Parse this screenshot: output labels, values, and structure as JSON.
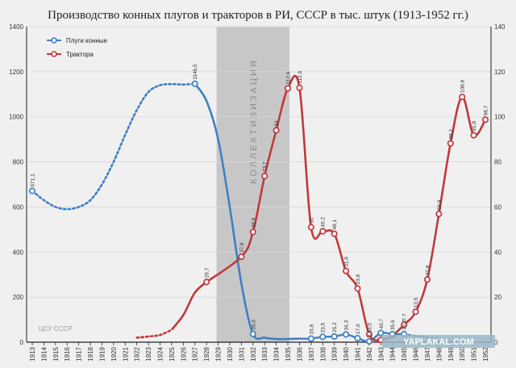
{
  "chart_data": {
    "type": "line",
    "title": "Производство конных плугов и тракторов в РИ, СССР в тыс. штук (1913-1952 гг.)",
    "y_left": {
      "ylim": [
        0,
        1400
      ],
      "ticks": [
        0,
        200,
        400,
        600,
        800,
        1000,
        1200,
        1400
      ]
    },
    "y_right": {
      "ylim": [
        0,
        140
      ],
      "ticks": [
        0,
        20,
        40,
        60,
        80,
        100,
        120,
        140
      ]
    },
    "x_ticks": [
      "1913",
      "1914",
      "1915",
      "1916",
      "1917",
      "1918",
      "1919",
      "1920",
      "1921",
      "1922",
      "1923",
      "1924",
      "1925",
      "1926",
      "1927",
      "1928",
      "1929",
      "1930",
      "1931",
      "1932",
      "1933",
      "1934",
      "1935",
      "1936",
      "1937",
      "1938",
      "1939",
      "1940",
      "1941",
      "1942",
      "1943",
      "1944",
      "1945",
      "1946",
      "1947",
      "1948",
      "1949",
      "1950",
      "1951",
      "1952"
    ],
    "band": {
      "from": 1929,
      "to": 1935,
      "label": "КОЛЛЕКТИВИЗАЦИЯ"
    },
    "legend": {
      "position": "top-left"
    },
    "source": "ЦСУ СССР",
    "watermark": "YAPLAKAL.COM",
    "colors": {
      "plows": "#3f7fc4",
      "tractors": "#c0393b",
      "band": "#c2c2c2",
      "axis": "#222222"
    },
    "series": [
      {
        "name": "Плуги конные",
        "axis": "left",
        "dotted_curve": [
          [
            1913,
            671.1
          ],
          [
            1914,
            630
          ],
          [
            1915,
            600
          ],
          [
            1916,
            590
          ],
          [
            1917,
            600
          ],
          [
            1918,
            630
          ],
          [
            1919,
            700
          ],
          [
            1920,
            800
          ],
          [
            1921,
            920
          ],
          [
            1922,
            1030
          ],
          [
            1923,
            1110
          ],
          [
            1924,
            1140
          ],
          [
            1925,
            1145
          ],
          [
            1926,
            1143
          ],
          [
            1927,
            1146.5
          ]
        ],
        "solid_curve": [
          [
            1927,
            1146.5
          ],
          [
            1928,
            1070
          ],
          [
            1929,
            900
          ],
          [
            1930,
            600
          ],
          [
            1931,
            260
          ],
          [
            1932,
            36.6
          ],
          [
            1933,
            20
          ],
          [
            1934,
            14
          ],
          [
            1935,
            14
          ],
          [
            1936,
            15.8
          ]
        ],
        "points": [
          {
            "x": 1913,
            "y": 671.1,
            "label": "671,1"
          },
          {
            "x": 1927,
            "y": 1146.5,
            "label": "1146,5"
          },
          {
            "x": 1932,
            "y": 36.6,
            "label": "36,6"
          },
          {
            "x": 1937,
            "y": 15.8,
            "label": "15,8"
          },
          {
            "x": 1938,
            "y": 23.5,
            "label": "23,5"
          },
          {
            "x": 1939,
            "y": 25.2,
            "label": "25,2"
          },
          {
            "x": 1940,
            "y": 34.3,
            "label": "34,3"
          },
          {
            "x": 1941,
            "y": 17.6,
            "label": "17,6"
          },
          {
            "x": 1942,
            "y": 3.5,
            "label": "3,5"
          },
          {
            "x": 1943,
            "y": 40.7,
            "label": "40,7"
          },
          {
            "x": 1944,
            "y": 35.6,
            "label": "35,6"
          },
          {
            "x": 1945,
            "y": 35.2,
            "label": "35,2"
          }
        ],
        "dotted_tail": [
          [
            1945,
            35.2
          ],
          [
            1946,
            28
          ],
          [
            1947,
            22
          ],
          [
            1948,
            18
          ]
        ]
      },
      {
        "name": "Трактора",
        "axis": "right",
        "dotted_head": [
          [
            1922,
            2
          ],
          [
            1923,
            2.5
          ],
          [
            1924,
            3.2
          ],
          [
            1925,
            5.5
          ]
        ],
        "lead_curve": [
          [
            1925,
            5.5
          ],
          [
            1926,
            12
          ],
          [
            1927,
            22
          ],
          [
            1928,
            26.7
          ]
        ],
        "points": [
          {
            "x": 1928,
            "y": 26.7,
            "label": "26,7"
          },
          {
            "x": 1931,
            "y": 37.9,
            "label": "37,9"
          },
          {
            "x": 1932,
            "y": 48.9,
            "label": "48,9"
          },
          {
            "x": 1933,
            "y": 73.7,
            "label": "73,7"
          },
          {
            "x": 1934,
            "y": 94,
            "label": "94"
          },
          {
            "x": 1935,
            "y": 112.6,
            "label": "112,6"
          },
          {
            "x": 1936,
            "y": 112.9,
            "label": "112,9"
          },
          {
            "x": 1937,
            "y": 51,
            "label": "51"
          },
          {
            "x": 1938,
            "y": 49.2,
            "label": "49,2"
          },
          {
            "x": 1939,
            "y": 48.1,
            "label": "48,1"
          },
          {
            "x": 1940,
            "y": 31.6,
            "label": "31,6"
          },
          {
            "x": 1941,
            "y": 23.8,
            "label": "23,8"
          },
          {
            "x": 1942,
            "y": 3.5,
            "label": "3,5"
          },
          {
            "x": 1943,
            "y": 1,
            "label": ""
          },
          {
            "x": 1944,
            "y": 3,
            "label": ""
          },
          {
            "x": 1945,
            "y": 7.7,
            "label": "7,7"
          },
          {
            "x": 1946,
            "y": 13.5,
            "label": "13,5"
          },
          {
            "x": 1947,
            "y": 27.8,
            "label": "27,8"
          },
          {
            "x": 1948,
            "y": 56.9,
            "label": "56,9"
          },
          {
            "x": 1949,
            "y": 88.2,
            "label": "88,2"
          },
          {
            "x": 1950,
            "y": 108.8,
            "label": "108,8"
          },
          {
            "x": 1951,
            "y": 91.8,
            "label": "91,8"
          },
          {
            "x": 1952,
            "y": 98.7,
            "label": "98,7"
          }
        ]
      }
    ]
  }
}
